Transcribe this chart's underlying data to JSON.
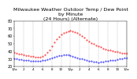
{
  "title": "Milwaukee Weather Outdoor Temp / Dew Point\nby Minute\n(24 Hours) (Alternate)",
  "title_fontsize": 4.5,
  "bg_color": "#ffffff",
  "temp_color": "#ff0000",
  "dew_color": "#0000ff",
  "grid_color": "#aaaaaa",
  "ylim": [
    20,
    80
  ],
  "xlim": [
    0,
    1440
  ],
  "ylabel_fontsize": 3.5,
  "xlabel_fontsize": 3.0,
  "marker_size": 0.8,
  "yticks": [
    20,
    30,
    40,
    50,
    60,
    70,
    80
  ],
  "xtick_hours": [
    0,
    2,
    4,
    6,
    8,
    10,
    12,
    14,
    16,
    18,
    20,
    22,
    24
  ],
  "xtick_labels": [
    "12a",
    "2",
    "4",
    "6",
    "8",
    "10",
    "12p",
    "2",
    "4",
    "6",
    "8",
    "10",
    "12a"
  ],
  "temp_x": [
    0,
    30,
    60,
    90,
    120,
    150,
    180,
    210,
    240,
    270,
    300,
    330,
    360,
    390,
    420,
    450,
    480,
    510,
    540,
    570,
    600,
    630,
    660,
    690,
    720,
    750,
    780,
    810,
    840,
    870,
    900,
    930,
    960,
    990,
    1020,
    1050,
    1080,
    1110,
    1140,
    1170,
    1200,
    1230,
    1260,
    1290,
    1320,
    1350,
    1380,
    1410,
    1440
  ],
  "temp_y": [
    38,
    37,
    36,
    36,
    35,
    34,
    34,
    33,
    33,
    32,
    32,
    32,
    33,
    35,
    38,
    42,
    47,
    52,
    56,
    59,
    62,
    64,
    65,
    66,
    67,
    66,
    65,
    64,
    62,
    60,
    58,
    55,
    53,
    51,
    50,
    48,
    47,
    46,
    44,
    43,
    42,
    41,
    40,
    39,
    39,
    38,
    37,
    37,
    37
  ],
  "dew_x": [
    0,
    30,
    60,
    90,
    120,
    150,
    180,
    210,
    240,
    270,
    300,
    330,
    360,
    390,
    420,
    450,
    480,
    510,
    540,
    570,
    600,
    630,
    660,
    690,
    720,
    750,
    780,
    810,
    840,
    870,
    900,
    930,
    960,
    990,
    1020,
    1050,
    1080,
    1110,
    1140,
    1170,
    1200,
    1230,
    1260,
    1290,
    1320,
    1350,
    1380,
    1410,
    1440
  ],
  "dew_y": [
    30,
    30,
    29,
    29,
    28,
    28,
    28,
    27,
    27,
    27,
    27,
    27,
    28,
    28,
    29,
    30,
    31,
    32,
    33,
    34,
    34,
    35,
    35,
    35,
    34,
    33,
    32,
    31,
    30,
    30,
    29,
    28,
    27,
    27,
    26,
    26,
    25,
    26,
    26,
    27,
    27,
    28,
    28,
    28,
    29,
    30,
    30,
    31,
    31
  ]
}
